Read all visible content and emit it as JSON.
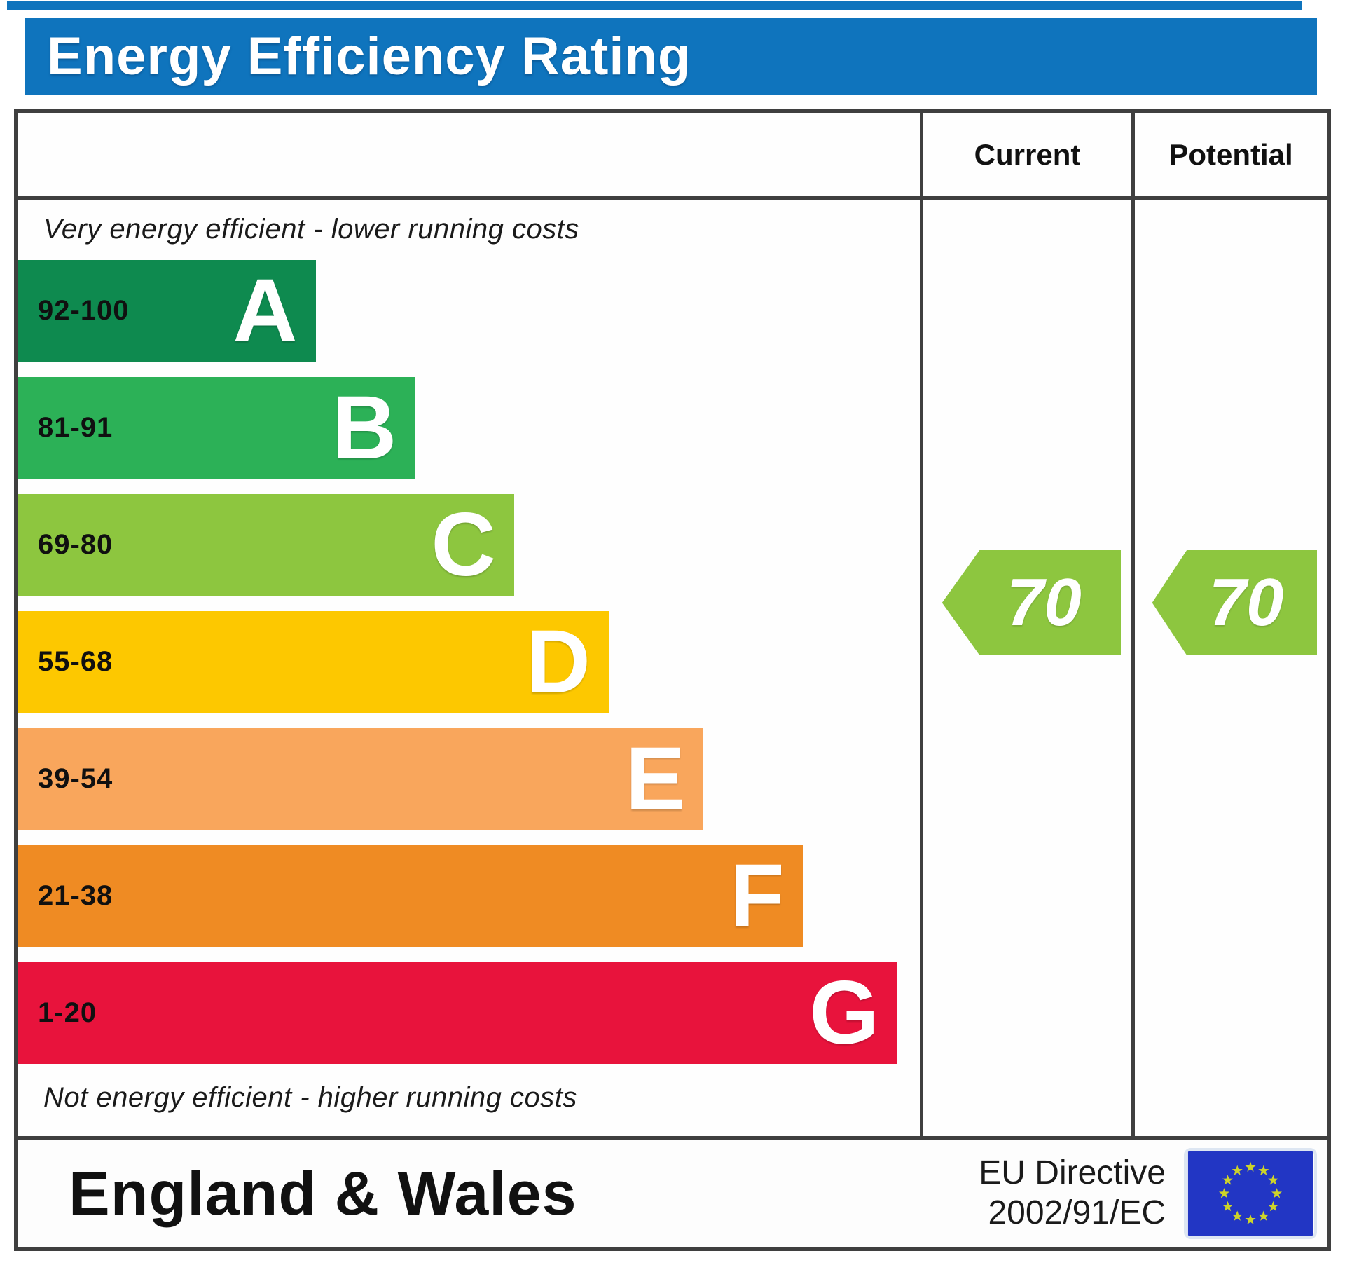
{
  "banner": {
    "title": "Energy Efficiency Rating",
    "bg_color": "#0f74bd"
  },
  "table_header": {
    "current_label": "Current",
    "potential_label": "Potential"
  },
  "scale": {
    "top_note": "Very energy efficient - lower running costs",
    "bottom_note": "Not energy efficient - higher running costs",
    "bands": [
      {
        "letter": "A",
        "range": "92-100",
        "color": "#0e8a4f",
        "width_pct": 33
      },
      {
        "letter": "B",
        "range": "81-91",
        "color": "#2cb157",
        "width_pct": 44
      },
      {
        "letter": "C",
        "range": "69-80",
        "color": "#8dc63f",
        "width_pct": 55
      },
      {
        "letter": "D",
        "range": "55-68",
        "color": "#fdc800",
        "width_pct": 65.5
      },
      {
        "letter": "E",
        "range": "39-54",
        "color": "#f9a65c",
        "width_pct": 76
      },
      {
        "letter": "F",
        "range": "21-38",
        "color": "#ef8b23",
        "width_pct": 87
      },
      {
        "letter": "G",
        "range": "1-20",
        "color": "#e8133c",
        "width_pct": 97.5
      }
    ]
  },
  "ratings": {
    "current": {
      "value": "70",
      "band": "C",
      "color": "#8dc63f"
    },
    "potential": {
      "value": "70",
      "band": "C",
      "color": "#8dc63f"
    }
  },
  "footer": {
    "region": "England & Wales",
    "directive_line1": "EU Directive",
    "directive_line2": "2002/91/EC",
    "flag": {
      "bg": "#2236c4",
      "stars": "#cdd32a"
    }
  },
  "chart_data": {
    "type": "bar",
    "title": "Energy Efficiency Rating",
    "categories": [
      "A (92-100)",
      "B (81-91)",
      "C (69-80)",
      "D (55-68)",
      "E (39-54)",
      "F (21-38)",
      "G (1-20)"
    ],
    "values": [
      33,
      44,
      55,
      65.5,
      76,
      87,
      97.5
    ],
    "value_unit": "percent of column width (band bar length)",
    "series": [
      {
        "name": "Current",
        "value": 70,
        "band": "C"
      },
      {
        "name": "Potential",
        "value": 70,
        "band": "C"
      }
    ],
    "xlabel": "",
    "ylabel": "",
    "legend_position": "none",
    "grid": false,
    "annotations": [
      "Very energy efficient - lower running costs",
      "Not energy efficient - higher running costs",
      "England & Wales",
      "EU Directive 2002/91/EC"
    ]
  }
}
